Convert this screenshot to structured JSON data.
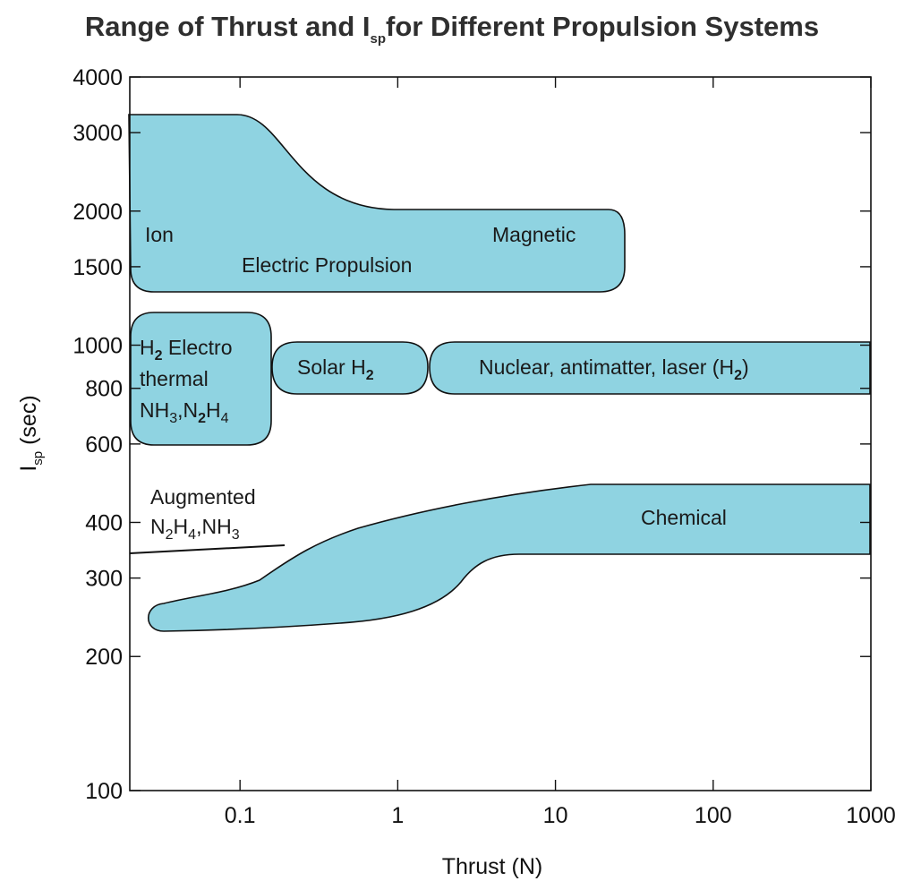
{
  "chart_data": {
    "type": "area",
    "title": {
      "pre": "Range of Thrust and I",
      "sub": "sp",
      "post": "for Different Propulsion Systems"
    },
    "xlabel": "Thrust (N)",
    "ylabel": {
      "main": "I",
      "sub": "sp",
      "post": " (sec)"
    },
    "x_scale": "log",
    "y_scale": "log",
    "xlim": [
      0.02,
      1000
    ],
    "ylim": [
      100,
      4000
    ],
    "x_ticks": [
      "0.1",
      "1",
      "10",
      "100",
      "1000"
    ],
    "y_ticks": [
      "100",
      "200",
      "300",
      "400",
      "600",
      "800",
      "1000",
      "1500",
      "2000",
      "3000",
      "4000"
    ],
    "grid": false,
    "fill_color": "#8fd3e1",
    "regions": [
      {
        "name": "Electric Propulsion",
        "thrust_range_N": [
          0.02,
          20
        ],
        "isp_range_s": [
          1350,
          3200
        ]
      },
      {
        "name": "Electrothermal (H2, NH3, N2H4)",
        "thrust_range_N": [
          0.02,
          0.12
        ],
        "isp_range_s": [
          640,
          1150
        ]
      },
      {
        "name": "Solar H2",
        "thrust_range_N": [
          0.12,
          1.5
        ],
        "isp_range_s": [
          800,
          1000
        ]
      },
      {
        "name": "Nuclear, antimatter, laser (H2)",
        "thrust_range_N": [
          1.5,
          1000
        ],
        "isp_range_s": [
          800,
          1000
        ]
      },
      {
        "name": "Chemical",
        "thrust_range_N": [
          0.03,
          1000
        ],
        "isp_range_s": [
          230,
          470
        ]
      }
    ],
    "augmented_line": {
      "thrust_N": [
        0.02,
        0.17
      ],
      "isp_s": [
        330,
        345
      ]
    },
    "annotations": {
      "ion": "Ion",
      "magnetic": "Magnetic",
      "electric": "Electric Propulsion",
      "electro_l1_pre": "H",
      "electro_l1_sub": "2",
      "electro_l1_post": " Electro",
      "electro_l2": "thermal",
      "electro_l3_a": "NH",
      "electro_l3_s1": "3",
      "electro_l3_b": ",N",
      "electro_l3_s2": "2",
      "electro_l3_c": "H",
      "electro_l3_s3": "4",
      "solar_pre": "Solar H",
      "solar_sub": "2",
      "nuclear_pre": "Nuclear, antimatter, laser (H",
      "nuclear_sub": "2",
      "nuclear_post": ")",
      "chemical": "Chemical",
      "aug_l1": "Augmented",
      "aug_l2_a": "N",
      "aug_l2_s1": "2",
      "aug_l2_b": "H",
      "aug_l2_s2": "4",
      "aug_l2_c": ",NH",
      "aug_l2_s3": "3"
    }
  }
}
